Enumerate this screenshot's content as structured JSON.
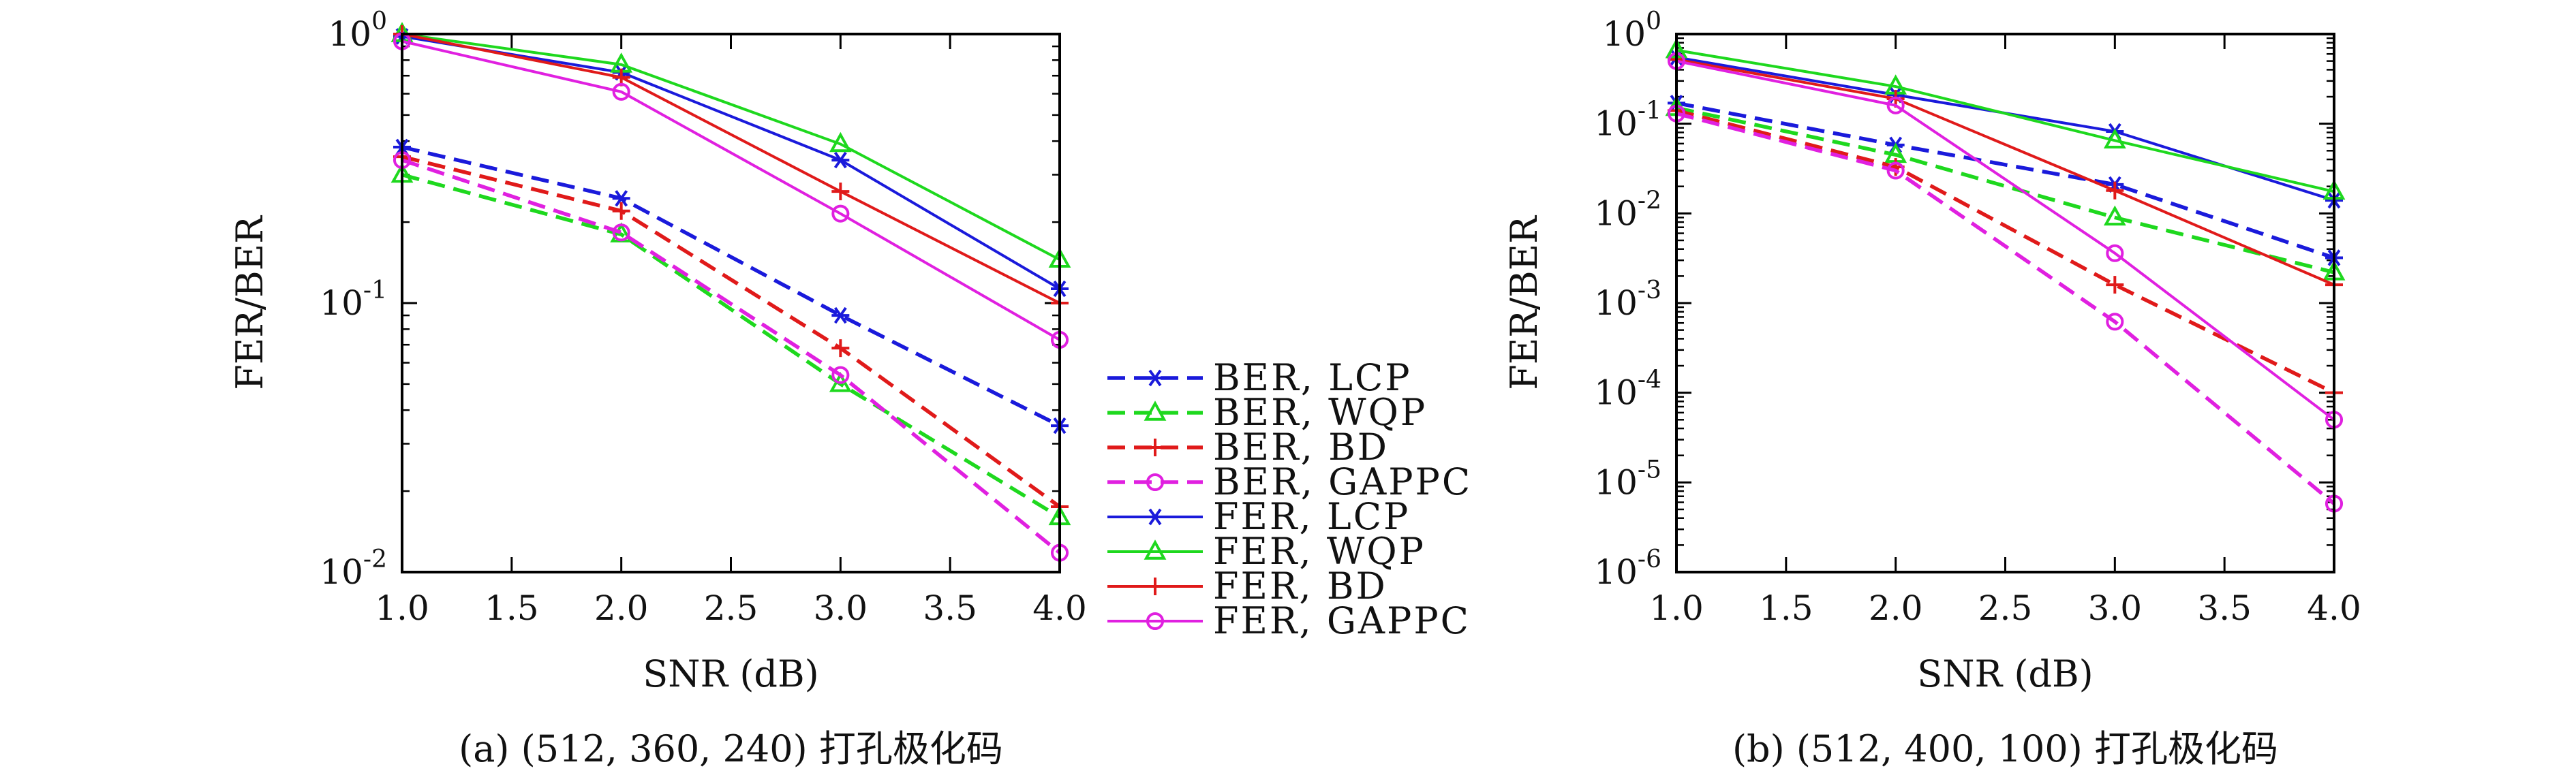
{
  "figure": {
    "legend": [
      {
        "label": "BER, LCP",
        "color": "#1a1adb",
        "dash": true,
        "marker": "star"
      },
      {
        "label": "BER, WQP",
        "color": "#1ed81e",
        "dash": true,
        "marker": "triangle"
      },
      {
        "label": "BER, BD",
        "color": "#e01a1a",
        "dash": true,
        "marker": "plus"
      },
      {
        "label": "BER, GAPPC",
        "color": "#e020e0",
        "dash": true,
        "marker": "circle"
      },
      {
        "label": "FER, LCP",
        "color": "#1a1adb",
        "dash": false,
        "marker": "star"
      },
      {
        "label": "FER, WQP",
        "color": "#1ed81e",
        "dash": false,
        "marker": "triangle"
      },
      {
        "label": "FER, BD",
        "color": "#e01a1a",
        "dash": false,
        "marker": "plus"
      },
      {
        "label": "FER, GAPPC",
        "color": "#e020e0",
        "dash": false,
        "marker": "circle"
      }
    ]
  },
  "chart_data": [
    {
      "type": "line",
      "caption": "(a) (512, 360, 240) 打孔极化码",
      "xlabel": "SNR (dB)",
      "ylabel": "FER/BER",
      "yscale": "log",
      "xlim": [
        1.0,
        4.0
      ],
      "ylim": [
        0.01,
        1
      ],
      "x_ticks": [
        "1.0",
        "1.5",
        "2.0",
        "2.5",
        "3.0",
        "3.5",
        "4.0"
      ],
      "x_tick_values": [
        1.0,
        1.5,
        2.0,
        2.5,
        3.0,
        3.5,
        4.0
      ],
      "y_ticks": [
        {
          "value": 0.01,
          "base": "10",
          "exp": "-2"
        },
        {
          "value": 0.1,
          "base": "10",
          "exp": "-1"
        },
        {
          "value": 1,
          "base": "10",
          "exp": "0"
        }
      ],
      "x": [
        1.0,
        2.0,
        3.0,
        4.0
      ],
      "series": [
        {
          "name": "BER, LCP",
          "color": "#1a1adb",
          "dash": true,
          "marker": "star",
          "values": [
            0.38,
            0.245,
            0.09,
            0.035
          ]
        },
        {
          "name": "BER, WQP",
          "color": "#1ed81e",
          "dash": true,
          "marker": "triangle",
          "values": [
            0.3,
            0.18,
            0.05,
            0.016
          ]
        },
        {
          "name": "BER, BD",
          "color": "#e01a1a",
          "dash": true,
          "marker": "plus",
          "values": [
            0.35,
            0.22,
            0.068,
            0.0175
          ]
        },
        {
          "name": "BER, GAPPC",
          "color": "#e020e0",
          "dash": true,
          "marker": "circle",
          "values": [
            0.34,
            0.183,
            0.054,
            0.0118
          ]
        },
        {
          "name": "FER, LCP",
          "color": "#1a1adb",
          "dash": false,
          "marker": "star",
          "values": [
            0.98,
            0.72,
            0.34,
            0.113
          ]
        },
        {
          "name": "FER, WQP",
          "color": "#1ed81e",
          "dash": false,
          "marker": "triangle",
          "values": [
            1.0,
            0.77,
            0.39,
            0.145
          ]
        },
        {
          "name": "FER, BD",
          "color": "#e01a1a",
          "dash": false,
          "marker": "plus",
          "values": [
            1.0,
            0.69,
            0.26,
            0.1
          ]
        },
        {
          "name": "FER, GAPPC",
          "color": "#e020e0",
          "dash": false,
          "marker": "circle",
          "values": [
            0.94,
            0.61,
            0.215,
            0.073
          ]
        }
      ]
    },
    {
      "type": "line",
      "caption": "(b) (512, 400, 100) 打孔极化码",
      "xlabel": "SNR (dB)",
      "ylabel": "FER/BER",
      "yscale": "log",
      "xlim": [
        1.0,
        4.0
      ],
      "ylim": [
        1e-06,
        1
      ],
      "x_ticks": [
        "1.0",
        "1.5",
        "2.0",
        "2.5",
        "3.0",
        "3.5",
        "4.0"
      ],
      "x_tick_values": [
        1.0,
        1.5,
        2.0,
        2.5,
        3.0,
        3.5,
        4.0
      ],
      "y_ticks": [
        {
          "value": 1e-06,
          "base": "10",
          "exp": "-6"
        },
        {
          "value": 1e-05,
          "base": "10",
          "exp": "-5"
        },
        {
          "value": 0.0001,
          "base": "10",
          "exp": "-4"
        },
        {
          "value": 0.001,
          "base": "10",
          "exp": "-3"
        },
        {
          "value": 0.01,
          "base": "10",
          "exp": "-2"
        },
        {
          "value": 0.1,
          "base": "10",
          "exp": "-1"
        },
        {
          "value": 1,
          "base": "10",
          "exp": "0"
        }
      ],
      "x": [
        1.0,
        2.0,
        3.0,
        4.0
      ],
      "series": [
        {
          "name": "BER, LCP",
          "color": "#1a1adb",
          "dash": true,
          "marker": "star",
          "values": [
            0.17,
            0.058,
            0.021,
            0.0032
          ]
        },
        {
          "name": "BER, WQP",
          "color": "#1ed81e",
          "dash": true,
          "marker": "triangle",
          "values": [
            0.15,
            0.045,
            0.009,
            0.0022
          ]
        },
        {
          "name": "BER, BD",
          "color": "#e01a1a",
          "dash": true,
          "marker": "plus",
          "values": [
            0.14,
            0.033,
            0.0016,
            0.0001
          ]
        },
        {
          "name": "BER, GAPPC",
          "color": "#e020e0",
          "dash": true,
          "marker": "circle",
          "values": [
            0.13,
            0.03,
            0.00062,
            5.8e-06
          ]
        },
        {
          "name": "FER, LCP",
          "color": "#1a1adb",
          "dash": false,
          "marker": "star",
          "values": [
            0.55,
            0.21,
            0.082,
            0.014
          ]
        },
        {
          "name": "FER, WQP",
          "color": "#1ed81e",
          "dash": false,
          "marker": "triangle",
          "values": [
            0.66,
            0.26,
            0.065,
            0.0175
          ]
        },
        {
          "name": "FER, BD",
          "color": "#e01a1a",
          "dash": false,
          "marker": "plus",
          "values": [
            0.52,
            0.19,
            0.018,
            0.0016
          ]
        },
        {
          "name": "FER, GAPPC",
          "color": "#e020e0",
          "dash": false,
          "marker": "circle",
          "values": [
            0.5,
            0.16,
            0.0036,
            5e-05
          ]
        }
      ]
    }
  ]
}
